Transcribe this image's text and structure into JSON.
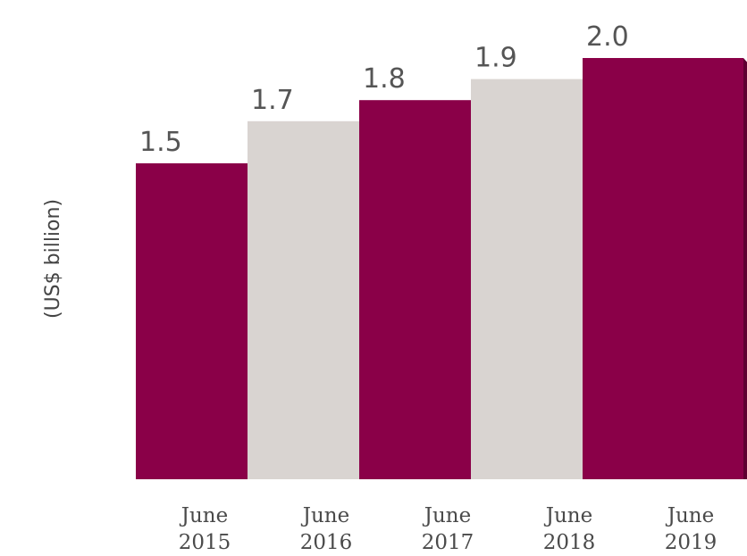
{
  "chart_data": {
    "type": "bar",
    "title": "",
    "xlabel": "",
    "ylabel": "(US$ billion)",
    "categories": [
      [
        "June",
        "2015"
      ],
      [
        "June",
        "2016"
      ],
      [
        "June",
        "2017"
      ],
      [
        "June",
        "2018"
      ],
      [
        "June",
        "2019"
      ]
    ],
    "values": [
      1.5,
      1.7,
      1.8,
      1.9,
      2.0
    ],
    "value_labels": [
      "1.5",
      "1.7",
      "1.8",
      "1.9",
      "2.0"
    ],
    "ylim": [
      0,
      2.1
    ],
    "grid": false,
    "legend": "none",
    "colors": {
      "primary": "#8a0048",
      "secondary": "#d9d4d1",
      "primary_side": "#5e0031",
      "secondary_side": "#9e9895"
    }
  }
}
